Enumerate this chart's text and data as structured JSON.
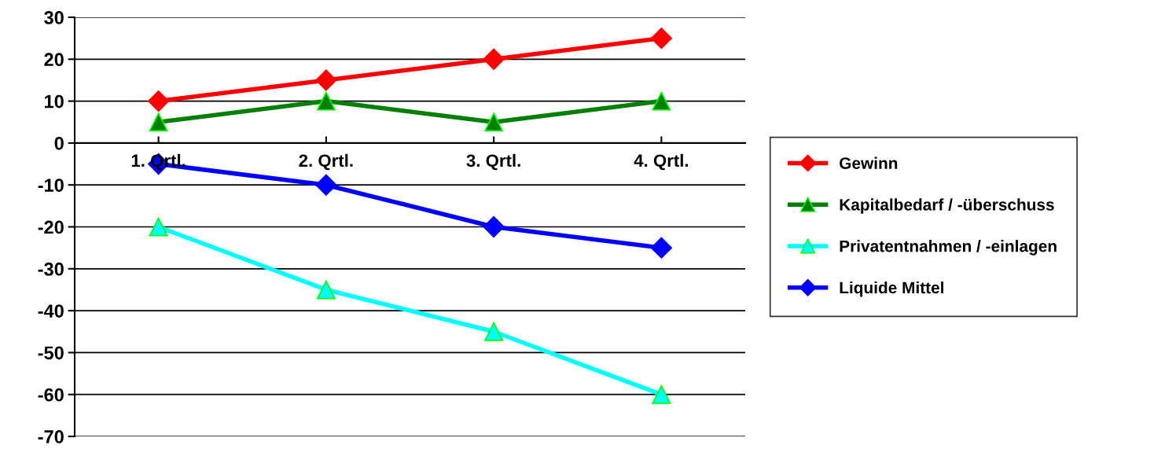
{
  "chart_data": {
    "type": "line",
    "categories": [
      "1. Qrtl.",
      "2. Qrtl.",
      "3. Qrtl.",
      "4. Qrtl."
    ],
    "series": [
      {
        "name": "Gewinn",
        "color": "#ff0000",
        "marker": "diamond",
        "values": [
          10,
          15,
          20,
          25
        ]
      },
      {
        "name": "Kapitalbedarf / -überschuss",
        "color": "#008000",
        "marker": "triangle",
        "values": [
          5,
          10,
          5,
          10
        ]
      },
      {
        "name": "Privatentnahmen / -einlagen",
        "color": "#00ffff",
        "marker": "triangle",
        "values": [
          -20,
          -35,
          -45,
          -60
        ]
      },
      {
        "name": "Liquide Mittel",
        "color": "#0000ff",
        "marker": "diamond",
        "values": [
          -5,
          -10,
          -20,
          -25
        ]
      }
    ],
    "ylim": [
      -70,
      30
    ],
    "yticks": [
      -70,
      -60,
      -50,
      -40,
      -30,
      -20,
      -10,
      0,
      10,
      20,
      30
    ],
    "grid": "y",
    "legend": "right"
  }
}
